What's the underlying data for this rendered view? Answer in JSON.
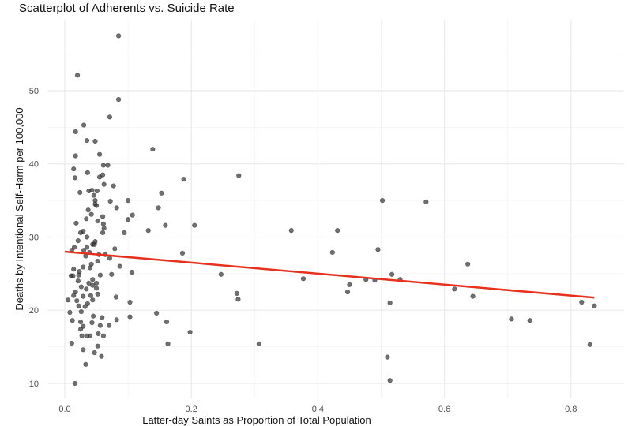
{
  "chart_data": {
    "type": "scatter",
    "title": "Scatterplot of Adherents vs. Suicide Rate",
    "xlabel": "Latter-day Saints as Proportion of Total Population",
    "ylabel": "Deaths by Intentional Self-Harm per 100,000",
    "xlim": [
      -0.0275,
      0.884
    ],
    "ylim": [
      7.95,
      59.7
    ],
    "xticks": [
      "0.0",
      "0.2",
      "0.4",
      "0.6",
      "0.8"
    ],
    "xtick_values": [
      0,
      0.2,
      0.4,
      0.6,
      0.8
    ],
    "yticks": [
      "10",
      "20",
      "30",
      "40",
      "50"
    ],
    "ytick_values": [
      10,
      20,
      30,
      40,
      50
    ],
    "grid": true,
    "point_color": "#333333",
    "line_color": "#e8301c",
    "trend_line": {
      "intercept": 28.0,
      "slope": -7.5,
      "x_range": [
        0,
        0.837
      ]
    },
    "points": [
      [
        0.085,
        57.5
      ],
      [
        0.02,
        52.1
      ],
      [
        0.085,
        48.8
      ],
      [
        0.071,
        46.4
      ],
      [
        0.03,
        45.3
      ],
      [
        0.017,
        44.4
      ],
      [
        0.035,
        43.2
      ],
      [
        0.048,
        43.1
      ],
      [
        0.139,
        42.0
      ],
      [
        0.017,
        41.1
      ],
      [
        0.055,
        41.3
      ],
      [
        0.061,
        39.8
      ],
      [
        0.068,
        39.8
      ],
      [
        0.014,
        39.3
      ],
      [
        0.036,
        38.8
      ],
      [
        0.016,
        38.1
      ],
      [
        0.055,
        38.2
      ],
      [
        0.06,
        38.5
      ],
      [
        0.062,
        37.2
      ],
      [
        0.077,
        37.0
      ],
      [
        0.024,
        36.1
      ],
      [
        0.038,
        36.3
      ],
      [
        0.043,
        36.4
      ],
      [
        0.051,
        36.3
      ],
      [
        0.046,
        35.7
      ],
      [
        0.048,
        35.0
      ],
      [
        0.072,
        34.9
      ],
      [
        0.1,
        35.0
      ],
      [
        0.153,
        36.0
      ],
      [
        0.048,
        34.5
      ],
      [
        0.05,
        34.3
      ],
      [
        0.082,
        34.0
      ],
      [
        0.148,
        34.0
      ],
      [
        0.037,
        33.7
      ],
      [
        0.042,
        33.1
      ],
      [
        0.06,
        32.8
      ],
      [
        0.107,
        33.0
      ],
      [
        0.1,
        32.4
      ],
      [
        0.034,
        32.5
      ],
      [
        0.052,
        32.2
      ],
      [
        0.018,
        31.9
      ],
      [
        0.061,
        31.8
      ],
      [
        0.062,
        31.2
      ],
      [
        0.159,
        31.6
      ],
      [
        0.132,
        30.9
      ],
      [
        0.094,
        30.6
      ],
      [
        0.029,
        30.8
      ],
      [
        0.025,
        30.6
      ],
      [
        0.06,
        30.6
      ],
      [
        0.035,
        30.0
      ],
      [
        0.021,
        29.5
      ],
      [
        0.048,
        29.4
      ],
      [
        0.044,
        29.0
      ],
      [
        0.047,
        29.0
      ],
      [
        0.015,
        28.6
      ],
      [
        0.035,
        28.6
      ],
      [
        0.011,
        28.2
      ],
      [
        0.03,
        28.2
      ],
      [
        0.079,
        28.4
      ],
      [
        0.039,
        27.9
      ],
      [
        0.054,
        27.6
      ],
      [
        0.064,
        27.6
      ],
      [
        0.033,
        27.4
      ],
      [
        0.071,
        27.1
      ],
      [
        0.052,
        26.7
      ],
      [
        0.042,
        26.3
      ],
      [
        0.087,
        26.0
      ],
      [
        0.029,
        25.9
      ],
      [
        0.04,
        25.8
      ],
      [
        0.014,
        25.6
      ],
      [
        0.106,
        25.2
      ],
      [
        0.023,
        25.3
      ],
      [
        0.074,
        24.9
      ],
      [
        0.056,
        24.8
      ],
      [
        0.01,
        24.7
      ],
      [
        0.013,
        24.7
      ],
      [
        0.022,
        24.8
      ],
      [
        0.044,
        24.2
      ],
      [
        0.021,
        24.0
      ],
      [
        0.038,
        23.7
      ],
      [
        0.05,
        23.7
      ],
      [
        0.044,
        23.4
      ],
      [
        0.026,
        23.2
      ],
      [
        0.05,
        23.0
      ],
      [
        0.034,
        22.9
      ],
      [
        0.017,
        22.5
      ],
      [
        0.052,
        22.2
      ],
      [
        0.014,
        22.0
      ],
      [
        0.029,
        21.9
      ],
      [
        0.041,
        22.0
      ],
      [
        0.081,
        21.8
      ],
      [
        0.005,
        21.4
      ],
      [
        0.019,
        21.3
      ],
      [
        0.044,
        21.4
      ],
      [
        0.036,
        20.9
      ],
      [
        0.022,
        20.6
      ],
      [
        0.032,
        20.5
      ],
      [
        0.103,
        21.1
      ],
      [
        0.008,
        19.7
      ],
      [
        0.026,
        19.8
      ],
      [
        0.145,
        19.6
      ],
      [
        0.045,
        19.2
      ],
      [
        0.059,
        19.0
      ],
      [
        0.082,
        18.7
      ],
      [
        0.103,
        19.1
      ],
      [
        0.012,
        18.6
      ],
      [
        0.025,
        18.4
      ],
      [
        0.043,
        18.3
      ],
      [
        0.161,
        18.4
      ],
      [
        0.056,
        17.9
      ],
      [
        0.07,
        17.9
      ],
      [
        0.029,
        17.8
      ],
      [
        0.025,
        17.4
      ],
      [
        0.053,
        16.8
      ],
      [
        0.027,
        16.5
      ],
      [
        0.035,
        16.5
      ],
      [
        0.04,
        16.5
      ],
      [
        0.061,
        16.5
      ],
      [
        0.011,
        15.5
      ],
      [
        0.163,
        15.4
      ],
      [
        0.052,
        15.1
      ],
      [
        0.029,
        14.6
      ],
      [
        0.047,
        14.2
      ],
      [
        0.058,
        13.7
      ],
      [
        0.033,
        12.6
      ],
      [
        0.016,
        10.0
      ],
      [
        0.188,
        37.9
      ],
      [
        0.275,
        38.4
      ],
      [
        0.205,
        31.6
      ],
      [
        0.186,
        27.8
      ],
      [
        0.247,
        24.9
      ],
      [
        0.272,
        22.3
      ],
      [
        0.274,
        21.5
      ],
      [
        0.198,
        17.0
      ],
      [
        0.307,
        15.4
      ],
      [
        0.358,
        30.9
      ],
      [
        0.377,
        24.3
      ],
      [
        0.431,
        30.9
      ],
      [
        0.423,
        27.9
      ],
      [
        0.45,
        23.5
      ],
      [
        0.447,
        22.5
      ],
      [
        0.476,
        24.2
      ],
      [
        0.49,
        24.1
      ],
      [
        0.495,
        28.3
      ],
      [
        0.502,
        35.0
      ],
      [
        0.571,
        34.8
      ],
      [
        0.517,
        24.9
      ],
      [
        0.53,
        24.2
      ],
      [
        0.514,
        21.0
      ],
      [
        0.51,
        13.6
      ],
      [
        0.514,
        10.4
      ],
      [
        0.616,
        22.9
      ],
      [
        0.637,
        26.3
      ],
      [
        0.645,
        21.9
      ],
      [
        0.706,
        18.8
      ],
      [
        0.735,
        18.6
      ],
      [
        0.817,
        21.1
      ],
      [
        0.837,
        20.6
      ],
      [
        0.83,
        15.3
      ]
    ]
  }
}
